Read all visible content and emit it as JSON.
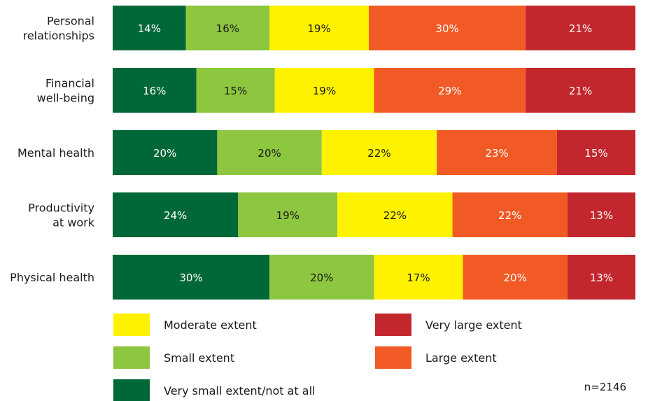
{
  "chart_data": {
    "type": "bar",
    "orientation": "horizontal",
    "stacked": true,
    "percent_scale": true,
    "categories": [
      [
        "Personal",
        "relationships"
      ],
      [
        "Financial",
        "well-being"
      ],
      [
        "Mental health"
      ],
      [
        "Productivity",
        "at work"
      ],
      [
        "Physical health"
      ]
    ],
    "series": [
      {
        "name": "Very small extent/not at all",
        "color": "#006837",
        "text_color": "#ffffff",
        "values": [
          14,
          16,
          20,
          24,
          30
        ]
      },
      {
        "name": "Small extent",
        "color": "#8dc63f",
        "text_color": "#1a1a1a",
        "values": [
          16,
          15,
          20,
          19,
          20
        ]
      },
      {
        "name": "Moderate extent",
        "color": "#fff200",
        "text_color": "#1a1a1a",
        "values": [
          19,
          19,
          22,
          22,
          17
        ]
      },
      {
        "name": "Large extent",
        "color": "#f15a24",
        "text_color": "#ffffff",
        "values": [
          30,
          29,
          23,
          22,
          20
        ]
      },
      {
        "name": "Very large extent",
        "color": "#c1272d",
        "text_color": "#ffffff",
        "values": [
          21,
          21,
          15,
          13,
          13
        ]
      }
    ],
    "value_format": "{v}%",
    "legend_order": [
      "Moderate extent",
      "Very large extent",
      "Small extent",
      "Large extent",
      "Very small extent/not at all"
    ],
    "legend_position": "bottom",
    "grid": false,
    "note": "n=2146"
  }
}
